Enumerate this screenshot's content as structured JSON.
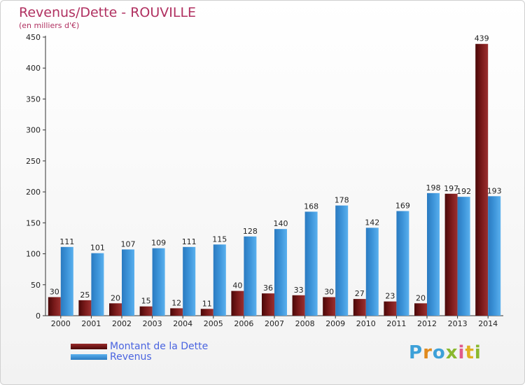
{
  "chart_data": {
    "type": "bar",
    "title": "Revenus/Dette - ROUVILLE",
    "subtitle": "(en milliers d'€)",
    "categories": [
      "2000",
      "2001",
      "2002",
      "2003",
      "2004",
      "2005",
      "2006",
      "2007",
      "2008",
      "2009",
      "2010",
      "2011",
      "2012",
      "2013",
      "2014"
    ],
    "series": [
      {
        "name": "Montant de la Dette",
        "color": "#7a1a1a",
        "values": [
          30,
          25,
          20,
          15,
          12,
          11,
          40,
          36,
          33,
          30,
          27,
          23,
          20,
          197,
          439
        ]
      },
      {
        "name": "Revenus",
        "color": "#3d94d9",
        "values": [
          111,
          101,
          107,
          109,
          111,
          115,
          128,
          140,
          168,
          178,
          142,
          169,
          198,
          192,
          193
        ]
      }
    ],
    "ylim": [
      0,
      450
    ],
    "yticks": [
      0,
      50,
      100,
      150,
      200,
      250,
      300,
      350,
      400,
      450
    ],
    "grid": false,
    "legend_position": "bottom-left"
  },
  "brand": {
    "letters": [
      "P",
      "r",
      "o",
      "x",
      "i",
      "t",
      "i"
    ],
    "colors": [
      "#3da0d8",
      "#e08a1e",
      "#3da0d8",
      "#8ab82e",
      "#e05a8a",
      "#e0b020",
      "#8ab82e"
    ]
  }
}
